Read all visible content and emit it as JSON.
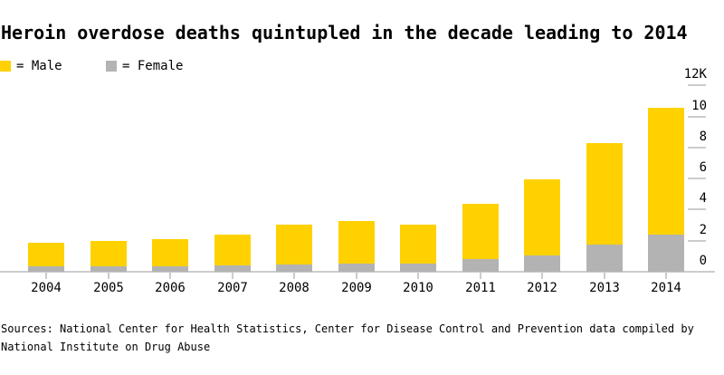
{
  "title": "Heroin overdose deaths quintupled in the decade leading to 2014",
  "legend": {
    "male_label": "= Male",
    "female_label": "= Female"
  },
  "colors": {
    "male": "#FFD100",
    "female": "#B3B3B3",
    "axis": "#CCCCCC",
    "text": "#000000",
    "background": "#FFFFFF"
  },
  "chart_data": {
    "type": "bar",
    "stacked": true,
    "title": "Heroin overdose deaths quintupled in the decade leading to 2014",
    "unit": "thousands of deaths",
    "categories": [
      "2004",
      "2005",
      "2006",
      "2007",
      "2008",
      "2009",
      "2010",
      "2011",
      "2012",
      "2013",
      "2014"
    ],
    "series": [
      {
        "name": "Female",
        "color": "#B3B3B3",
        "values": [
          0.34,
          0.35,
          0.36,
          0.4,
          0.47,
          0.54,
          0.54,
          0.79,
          1.06,
          1.73,
          2.41
        ]
      },
      {
        "name": "Male",
        "color": "#FFD100",
        "values": [
          1.54,
          1.66,
          1.73,
          2.0,
          2.57,
          2.74,
          2.5,
          3.6,
          4.86,
          6.53,
          8.16
        ]
      }
    ],
    "totals": [
      1.88,
      2.01,
      2.09,
      2.4,
      3.04,
      3.28,
      3.04,
      4.39,
      5.92,
      8.26,
      10.57
    ],
    "y_axis": {
      "side": "right",
      "min": 0,
      "max": 12,
      "gridlines": false,
      "ticks": [
        {
          "value": 12,
          "label": "12K"
        },
        {
          "value": 10,
          "label": "10"
        },
        {
          "value": 8,
          "label": "8"
        },
        {
          "value": 6,
          "label": "6"
        },
        {
          "value": 4,
          "label": "4"
        },
        {
          "value": 2,
          "label": "2"
        },
        {
          "value": 0,
          "label": "0"
        }
      ]
    },
    "legend_position": "top-left"
  },
  "footer": {
    "line1": "Sources: National Center for Health Statistics, Center for Disease Control and Prevention data compiled by",
    "line2": "National Institute on Drug Abuse"
  }
}
